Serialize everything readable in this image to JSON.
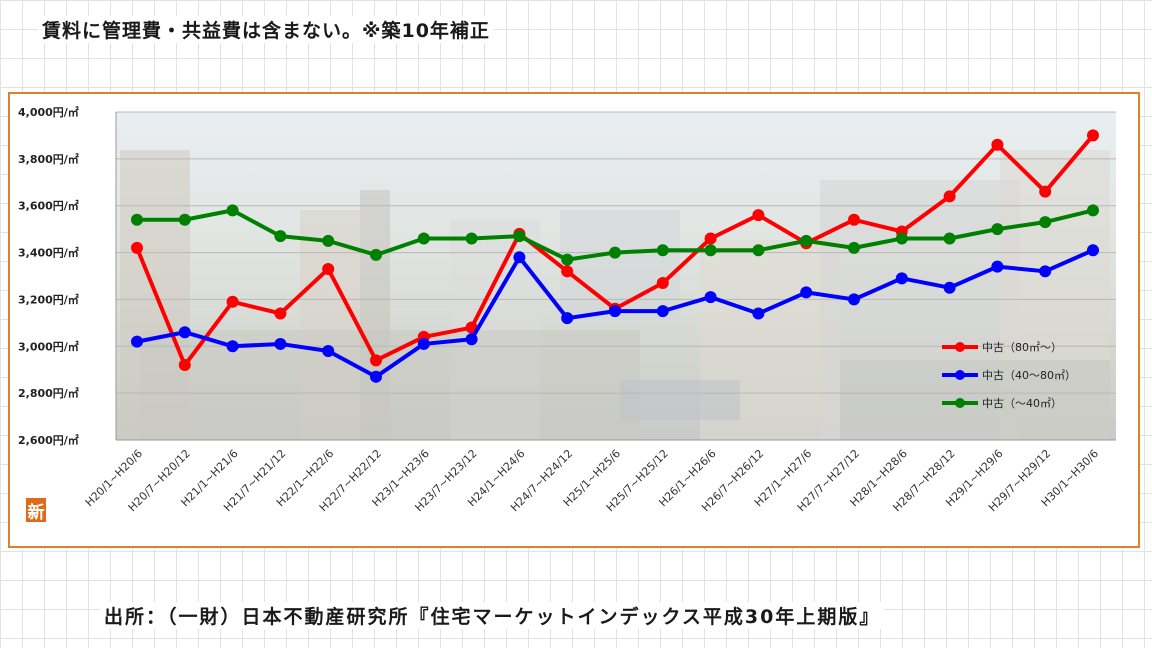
{
  "heading": "賃料に管理費・共益費は含まない。※築10年補正",
  "source": "出所：（一財）日本不動産研究所『住宅マーケットインデックス平成30年上期版』",
  "badge": "新",
  "colors": {
    "frame": "#d9822b",
    "series": [
      "#ff0000",
      "#0000ff",
      "#008000"
    ]
  },
  "chart_data": {
    "type": "line",
    "y_unit_suffix": "円/㎡",
    "ylim": [
      2600,
      4000
    ],
    "yticks": [
      2600,
      2800,
      3000,
      3200,
      3400,
      3600,
      3800,
      4000
    ],
    "ytick_labels": [
      "2,600円/㎡",
      "2,800円/㎡",
      "3,000円/㎡",
      "3,200円/㎡",
      "3,400円/㎡",
      "3,600円/㎡",
      "3,800円/㎡",
      "4,000円/㎡"
    ],
    "categories": [
      "H20/1~H20/6",
      "H20/7~H20/12",
      "H21/1~H21/6",
      "H21/7~H21/12",
      "H22/1~H22/6",
      "H22/7~H22/12",
      "H23/1~H23/6",
      "H23/7~H23/12",
      "H24/1~H24/6",
      "H24/7~H24/12",
      "H25/1~H25/6",
      "H25/7~H25/12",
      "H26/1~H26/6",
      "H26/7~H26/12",
      "H27/1~H27/6",
      "H27/7~H27/12",
      "H28/1~H28/6",
      "H28/7~H28/12",
      "H29/1~H29/6",
      "H29/7~H29/12",
      "H30/1~H30/6"
    ],
    "series": [
      {
        "name": "中古（80㎡～）",
        "values": [
          3420,
          2920,
          3190,
          3140,
          3330,
          2940,
          3040,
          3080,
          3480,
          3320,
          3160,
          3270,
          3460,
          3560,
          3440,
          3540,
          3490,
          3640,
          3860,
          3660,
          3900
        ]
      },
      {
        "name": "中古（40～80㎡）",
        "values": [
          3020,
          3060,
          3000,
          3010,
          2980,
          2870,
          3010,
          3030,
          3380,
          3120,
          3150,
          3150,
          3210,
          3140,
          3230,
          3200,
          3290,
          3250,
          3340,
          3320,
          3410
        ]
      },
      {
        "name": "中古（～40㎡）",
        "values": [
          3540,
          3540,
          3580,
          3470,
          3450,
          3390,
          3460,
          3460,
          3470,
          3370,
          3400,
          3410,
          3410,
          3410,
          3450,
          3420,
          3460,
          3460,
          3500,
          3530,
          3580
        ]
      }
    ],
    "legend": "right",
    "grid": "horizontal"
  }
}
